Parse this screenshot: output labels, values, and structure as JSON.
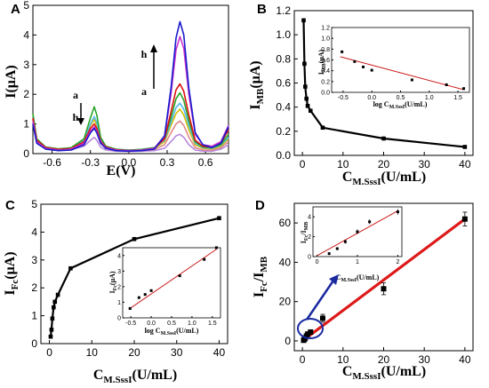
{
  "chart_data": [
    {
      "panel": "A",
      "type": "line",
      "xlabel": "E(V)",
      "ylabel": "I(μA)",
      "xlim": [
        -0.75,
        0.78
      ],
      "ylim": [
        0,
        5
      ],
      "xticks": [
        "-0.6",
        "-0.3",
        "0.0",
        "0.3",
        "0.6"
      ],
      "yticks": [
        "0",
        "1",
        "2",
        "3",
        "4",
        "5"
      ],
      "annotations": [
        "a",
        "h",
        "h",
        "a"
      ],
      "x": [
        -0.75,
        -0.72,
        -0.65,
        -0.55,
        -0.45,
        -0.35,
        -0.3,
        -0.27,
        -0.25,
        -0.22,
        -0.18,
        -0.1,
        0.0,
        0.1,
        0.2,
        0.28,
        0.33,
        0.37,
        0.4,
        0.43,
        0.47,
        0.52,
        0.58,
        0.65,
        0.72,
        0.78
      ],
      "series": [
        {
          "color": "#1a1acc",
          "values": [
            1.0,
            0.35,
            0.15,
            0.1,
            0.12,
            0.3,
            0.7,
            0.85,
            0.7,
            0.35,
            0.18,
            0.1,
            0.08,
            0.1,
            0.15,
            0.6,
            2.2,
            3.9,
            4.45,
            4.0,
            2.2,
            0.7,
            0.3,
            0.2,
            0.35,
            0.9
          ]
        },
        {
          "color": "#cc33cc",
          "values": [
            1.1,
            0.4,
            0.18,
            0.12,
            0.15,
            0.35,
            0.75,
            0.9,
            0.75,
            0.38,
            0.2,
            0.12,
            0.1,
            0.12,
            0.18,
            0.6,
            2.0,
            3.5,
            3.95,
            3.55,
            2.0,
            0.65,
            0.3,
            0.25,
            0.4,
            0.95
          ]
        },
        {
          "color": "#dd1111",
          "values": [
            1.2,
            0.45,
            0.2,
            0.14,
            0.17,
            0.4,
            0.85,
            1.0,
            0.85,
            0.42,
            0.22,
            0.13,
            0.1,
            0.12,
            0.18,
            0.5,
            1.4,
            2.15,
            2.35,
            2.1,
            1.3,
            0.45,
            0.25,
            0.22,
            0.35,
            0.8
          ]
        },
        {
          "color": "#2aa52a",
          "values": [
            1.35,
            0.5,
            0.22,
            0.16,
            0.2,
            0.5,
            1.2,
            1.58,
            1.3,
            0.55,
            0.25,
            0.15,
            0.12,
            0.14,
            0.2,
            0.5,
            1.2,
            1.85,
            2.05,
            1.8,
            1.1,
            0.4,
            0.22,
            0.2,
            0.3,
            0.65
          ]
        },
        {
          "color": "#55bbee",
          "values": [
            1.25,
            0.48,
            0.22,
            0.15,
            0.18,
            0.45,
            1.0,
            1.25,
            1.05,
            0.48,
            0.23,
            0.14,
            0.12,
            0.14,
            0.2,
            0.45,
            1.05,
            1.55,
            1.7,
            1.5,
            0.95,
            0.35,
            0.2,
            0.18,
            0.28,
            0.55
          ]
        },
        {
          "color": "#d6c000",
          "values": [
            1.3,
            0.5,
            0.22,
            0.15,
            0.18,
            0.45,
            0.95,
            1.15,
            0.95,
            0.45,
            0.22,
            0.13,
            0.11,
            0.13,
            0.18,
            0.4,
            0.95,
            1.35,
            1.5,
            1.3,
            0.8,
            0.3,
            0.18,
            0.16,
            0.25,
            0.5
          ]
        },
        {
          "color": "#e08888",
          "values": [
            1.15,
            0.45,
            0.2,
            0.14,
            0.16,
            0.35,
            0.75,
            0.85,
            0.7,
            0.35,
            0.18,
            0.11,
            0.1,
            0.1,
            0.14,
            0.3,
            0.7,
            1.0,
            1.1,
            0.95,
            0.55,
            0.2,
            0.12,
            0.12,
            0.2,
            0.4
          ]
        },
        {
          "color": "#b888dd",
          "values": [
            1.05,
            0.4,
            0.17,
            0.12,
            0.14,
            0.25,
            0.45,
            0.55,
            0.45,
            0.22,
            0.12,
            0.08,
            0.07,
            0.08,
            0.1,
            0.18,
            0.4,
            0.6,
            0.65,
            0.55,
            0.3,
            0.12,
            0.08,
            0.08,
            0.15,
            0.3
          ]
        }
      ]
    },
    {
      "panel": "B",
      "type": "line",
      "xlabel": "C_M.SssI(U/mL)",
      "ylabel": "I_MB(μA)",
      "xlim": [
        -2,
        42
      ],
      "ylim": [
        0,
        1.2
      ],
      "xticks": [
        "0",
        "10",
        "20",
        "30",
        "40"
      ],
      "yticks": [
        "0.0",
        "0.2",
        "0.4",
        "0.6",
        "0.8",
        "1.0",
        "1.2"
      ],
      "x": [
        0.3,
        0.5,
        0.7,
        1.0,
        1.3,
        2.0,
        5.0,
        20.0,
        40.0
      ],
      "values": [
        1.12,
        0.76,
        0.57,
        0.47,
        0.41,
        0.37,
        0.23,
        0.14,
        0.07
      ],
      "inset": {
        "type": "scatter",
        "xlabel": "log C_M.SssI(U/mL)",
        "ylabel": "I_MB(μA)",
        "xlim": [
          -0.7,
          1.7
        ],
        "ylim": [
          0,
          1.2
        ],
        "xticks": [
          "-0.5",
          "0.0",
          "0.5",
          "1.0",
          "1.5"
        ],
        "yticks": [
          "0.0",
          "0.2",
          "0.4",
          "0.6",
          "0.8",
          "1.0",
          "1.2"
        ],
        "x": [
          -0.52,
          -0.3,
          -0.15,
          0.0,
          0.7,
          1.3,
          1.6
        ],
        "values": [
          0.75,
          0.57,
          0.47,
          0.41,
          0.23,
          0.14,
          0.07
        ],
        "fit": [
          [
            -0.55,
            0.66
          ],
          [
            1.6,
            0.05
          ]
        ]
      }
    },
    {
      "panel": "C",
      "type": "line",
      "xlabel": "C_M.SssI(U/mL)",
      "ylabel": "I_Fc(μA)",
      "xlim": [
        -2,
        42
      ],
      "ylim": [
        0,
        5
      ],
      "xticks": [
        "0",
        "10",
        "20",
        "30",
        "40"
      ],
      "yticks": [
        "0",
        "1",
        "2",
        "3",
        "4",
        "5"
      ],
      "x": [
        0.3,
        0.5,
        0.7,
        1.0,
        1.3,
        2.0,
        5.0,
        20.0,
        40.0
      ],
      "values": [
        0.25,
        0.5,
        0.9,
        1.3,
        1.5,
        1.75,
        2.7,
        3.75,
        4.5
      ],
      "inset": {
        "type": "scatter",
        "xlabel": "log C_M.SssI(U/mL)",
        "ylabel": "I_Fc(μA)",
        "xlim": [
          -0.7,
          1.7
        ],
        "ylim": [
          0,
          4.5
        ],
        "xticks": [
          "-0.5",
          "0.0",
          "0.5",
          "1.0",
          "1.5"
        ],
        "yticks": [
          "0",
          "1",
          "2",
          "3",
          "4"
        ],
        "x": [
          -0.52,
          -0.3,
          -0.15,
          0.0,
          0.7,
          1.3,
          1.6
        ],
        "values": [
          0.6,
          1.3,
          1.5,
          1.75,
          2.7,
          3.75,
          4.5
        ],
        "fit": [
          [
            -0.55,
            0.55
          ],
          [
            1.6,
            4.4
          ]
        ]
      }
    },
    {
      "panel": "D",
      "type": "scatter",
      "xlabel": "C_M.SssI(U/mL)",
      "ylabel": "I_Fc/I_MB",
      "xlim": [
        -2,
        42
      ],
      "ylim": [
        -5,
        70
      ],
      "xticks": [
        "0",
        "10",
        "20",
        "30",
        "40"
      ],
      "yticks": [
        "0",
        "20",
        "40",
        "60"
      ],
      "x": [
        0.3,
        0.5,
        0.7,
        1.0,
        1.3,
        2.0,
        5.0,
        20.0,
        40.0
      ],
      "values": [
        0.3,
        0.8,
        1.5,
        2.5,
        3.5,
        4.5,
        11.5,
        26.5,
        62.0
      ],
      "errors": [
        0.3,
        0.4,
        0.5,
        0.5,
        0.6,
        0.8,
        2.0,
        3.0,
        3.5
      ],
      "fit": [
        [
          0,
          0
        ],
        [
          40,
          62
        ]
      ],
      "inset": {
        "type": "scatter",
        "xlabel": "C_M.SssI(U/mL)",
        "ylabel": "I_Fc/I_MB",
        "xlim": [
          -0.1,
          2.1
        ],
        "ylim": [
          0,
          5
        ],
        "xticks": [
          "0",
          "1",
          "2"
        ],
        "yticks": [
          "0",
          "2",
          "4"
        ],
        "x": [
          0.3,
          0.5,
          0.7,
          1.0,
          1.3,
          2.0
        ],
        "values": [
          0.3,
          0.8,
          1.5,
          2.5,
          3.5,
          4.5
        ],
        "errors": [
          0.1,
          0.15,
          0.2,
          0.25,
          0.25,
          0.3
        ],
        "fit": [
          [
            0,
            0.1
          ],
          [
            2,
            4.6
          ]
        ]
      }
    }
  ]
}
